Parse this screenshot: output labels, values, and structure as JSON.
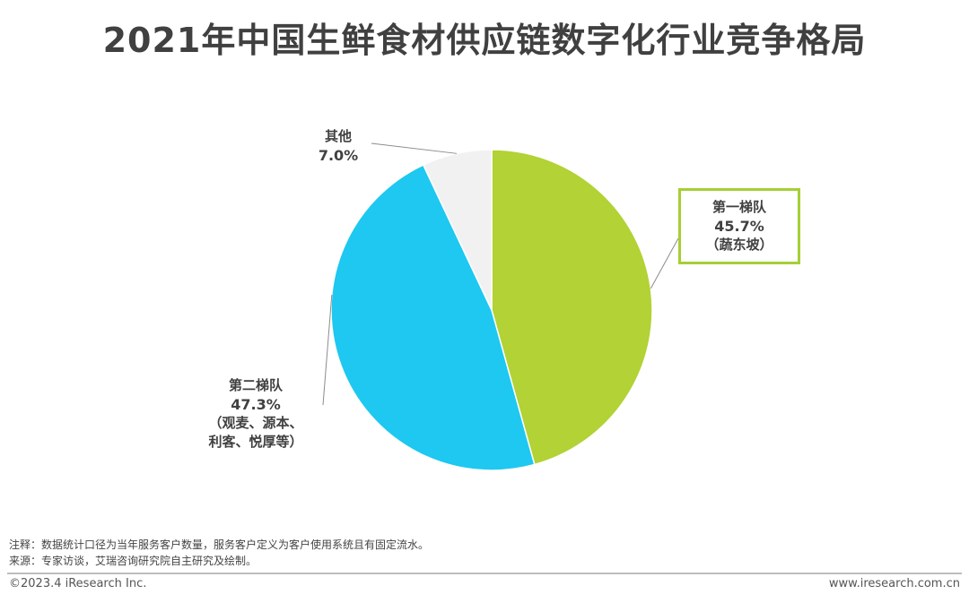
{
  "header": {
    "title": "2021年中国生鲜食材供应链数字化行业竞争格局"
  },
  "chart_data": {
    "type": "pie",
    "title": "2021年中国生鲜食材供应链数字化行业竞争格局",
    "slices": [
      {
        "label": "第一梯队",
        "percent_label": "45.7%",
        "value": 45.7,
        "note_lines": [
          "（蔬东坡）"
        ],
        "color": "#b2d235"
      },
      {
        "label": "第二梯队",
        "percent_label": "47.3%",
        "value": 47.3,
        "note_lines": [
          "（观麦、源本、",
          "利客、悦厚等）"
        ],
        "color": "#1ec8f0"
      },
      {
        "label": "其他",
        "percent_label": "7.0%",
        "value": 7.0,
        "note_lines": [],
        "color": "#f1f1f1"
      }
    ],
    "start": "12 o'clock",
    "direction": "clockwise",
    "legend": "none"
  },
  "footer": {
    "note": "注释：数据统计口径为当年服务客户数量，服务客户定义为客户使用系统且有固定流水。",
    "source": "来源：专家访谈，艾瑞咨询研究院自主研究及绘制。",
    "copyright": "©2023.4 iResearch Inc.",
    "website": "www.iresearch.com.cn"
  }
}
